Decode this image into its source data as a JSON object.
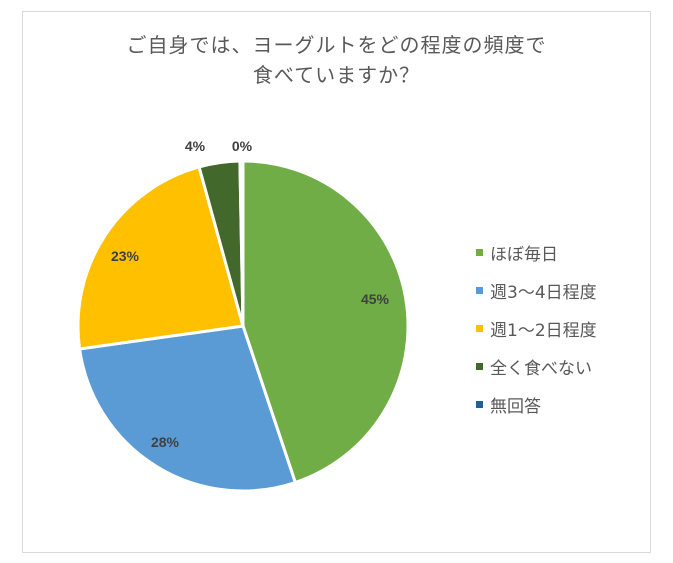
{
  "chart_data": {
    "type": "pie",
    "title": "ご自身では、ヨーグルトをどの程度の頻度で食べていますか？",
    "title_lines": [
      "ご自身では、ヨーグルトをどの程度の頻度で",
      "食べていますか？"
    ],
    "categories": [
      "ほぼ毎日",
      "週3〜4日程度",
      "週1〜2日程度",
      "全く食べない",
      "無回答"
    ],
    "values": [
      45,
      28,
      23,
      4,
      0
    ],
    "labels": [
      "45%",
      "28%",
      "23%",
      "4%",
      "0%"
    ],
    "colors": [
      "#70AD47",
      "#5B9BD5",
      "#FFC000",
      "#43682B",
      "#255E91"
    ],
    "legend_position": "right",
    "unit": "%"
  }
}
